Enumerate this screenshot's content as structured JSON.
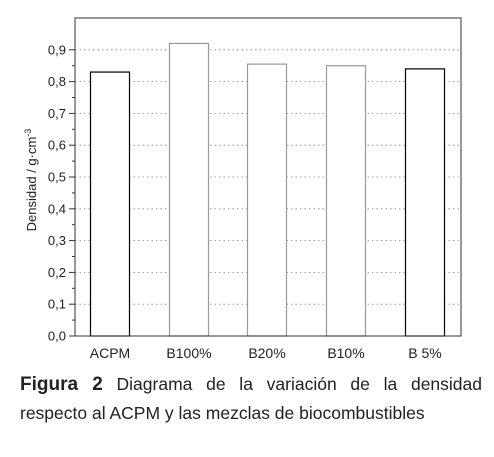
{
  "chart_data": {
    "type": "bar",
    "categories": [
      "ACPM",
      "B100%",
      "B20%",
      "B10%",
      "B 5%"
    ],
    "values": [
      0.83,
      0.92,
      0.855,
      0.85,
      0.84
    ],
    "ylabel": "Densidad  / g·cm",
    "ylabel_superscript": "-3",
    "xlabel": "",
    "ylim": [
      0.0,
      1.0
    ],
    "yticks": [
      "0,0",
      "0,1",
      "0,2",
      "0,3",
      "0,4",
      "0,5",
      "0,6",
      "0,7",
      "0,8",
      "0,9"
    ],
    "grid": "horizontal dotted",
    "bar_colors": [
      "#000000",
      "#9a9a9a",
      "#9a9a9a",
      "#9a9a9a",
      "#000000"
    ]
  },
  "caption": {
    "label": "Figura 2",
    "text": "Diagrama de la variación de la densidad respecto al ACPM y las mezclas de biocombustibles"
  }
}
